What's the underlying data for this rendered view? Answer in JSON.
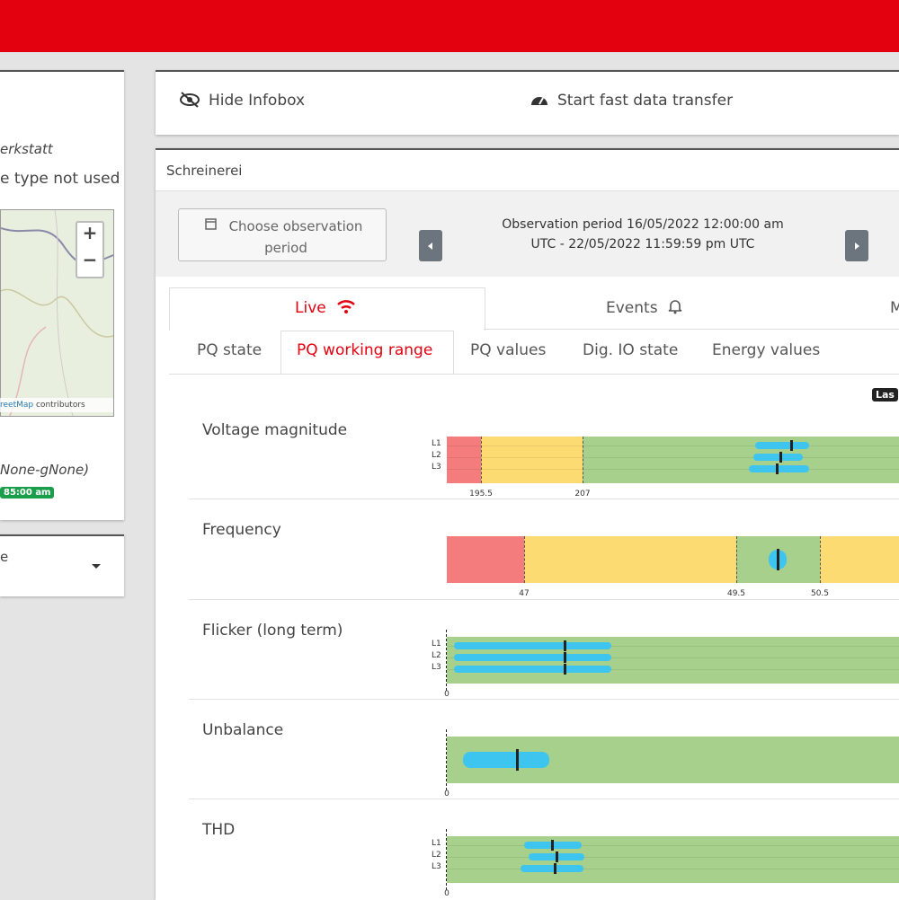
{
  "left_panel": {
    "location": "erkstatt",
    "device_type": "e type not used",
    "map_zoom_in": "+",
    "map_zoom_out": "−",
    "map_attribution_link": "reetMap",
    "map_attribution": "contributors",
    "id": "None-gNone)",
    "time_badge": "85:00 am",
    "dropdown": "e"
  },
  "toolbar": {
    "hide_infobox": "Hide Infobox",
    "fast_transfer": "Start fast data transfer"
  },
  "panel": {
    "title": "Schreinerei",
    "choose_period": "Choose observation period",
    "period_label": "Observation period",
    "period_value": "16/05/2022 12:00:00 am UTC - 22/05/2022 11:59:59 pm UTC"
  },
  "tabs": [
    "Live",
    "Events",
    "M"
  ],
  "subtabs": [
    "PQ state",
    "PQ working range",
    "PQ values",
    "Dig. IO state",
    "Energy values"
  ],
  "last_badge": "Las",
  "rows": [
    {
      "label": "Voltage magnitude",
      "phases": [
        "L1",
        "L2",
        "L3"
      ],
      "ticks": [
        "195.5",
        "207"
      ]
    },
    {
      "label": "Frequency",
      "ticks": [
        "47",
        "49.5",
        "50.5"
      ]
    },
    {
      "label": "Flicker (long term)",
      "phases": [
        "L1",
        "L2",
        "L3"
      ],
      "ticks": [
        "0"
      ]
    },
    {
      "label": "Unbalance",
      "ticks": [
        "0"
      ]
    },
    {
      "label": "THD",
      "phases": [
        "L1",
        "L2",
        "L3"
      ],
      "ticks": [
        "0"
      ]
    }
  ]
}
